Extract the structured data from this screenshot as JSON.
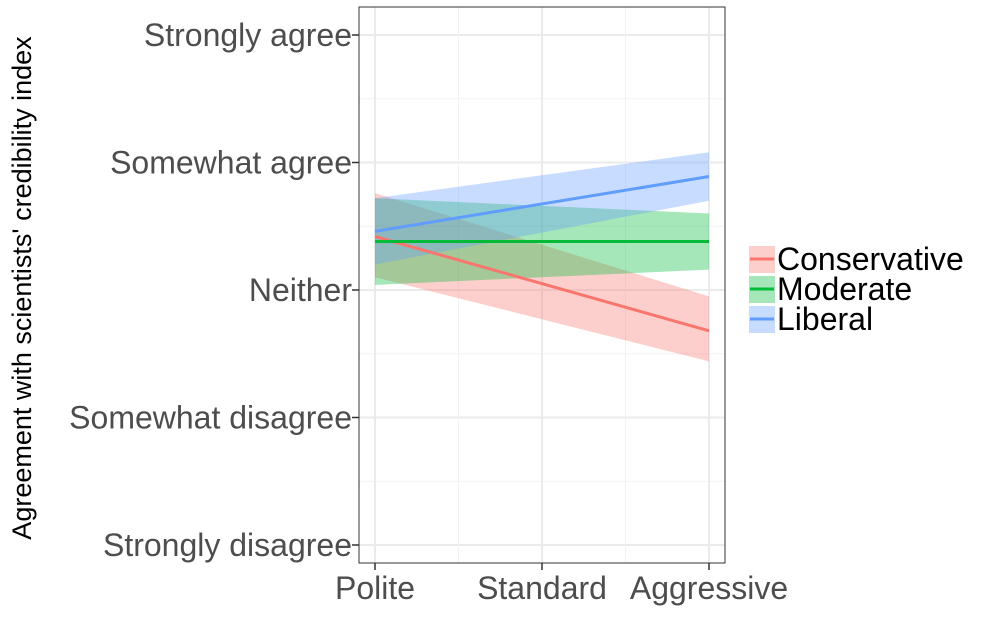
{
  "chart_data": {
    "type": "line",
    "title": "",
    "xlabel": "",
    "ylabel": "Agreement with scientists' credibility index",
    "categories": [
      "Polite",
      "Standard",
      "Aggressive"
    ],
    "x_range": [
      1,
      3
    ],
    "y_ticks": [
      "Strongly disagree",
      "Somewhat disagree",
      "Neither",
      "Somewhat agree",
      "Strongly agree"
    ],
    "y_tick_values": [
      1,
      2,
      3,
      4,
      5
    ],
    "ylim": [
      0.95,
      5.2
    ],
    "grid": true,
    "legend_position": "right",
    "confidence_bands": true,
    "series": [
      {
        "name": "Conservative",
        "color": "#F8766D",
        "x": [
          1,
          3
        ],
        "y": [
          3.42,
          2.68
        ],
        "lower": [
          3.1,
          2.44
        ],
        "upper": [
          3.76,
          2.95
        ]
      },
      {
        "name": "Moderate",
        "color": "#00BA38",
        "x": [
          1,
          3
        ],
        "y": [
          3.38,
          3.38
        ],
        "lower": [
          3.04,
          3.16
        ],
        "upper": [
          3.72,
          3.6
        ]
      },
      {
        "name": "Liberal",
        "color": "#619CFF",
        "x": [
          1,
          3
        ],
        "y": [
          3.46,
          3.89
        ],
        "lower": [
          3.2,
          3.7
        ],
        "upper": [
          3.72,
          4.08
        ]
      }
    ]
  }
}
